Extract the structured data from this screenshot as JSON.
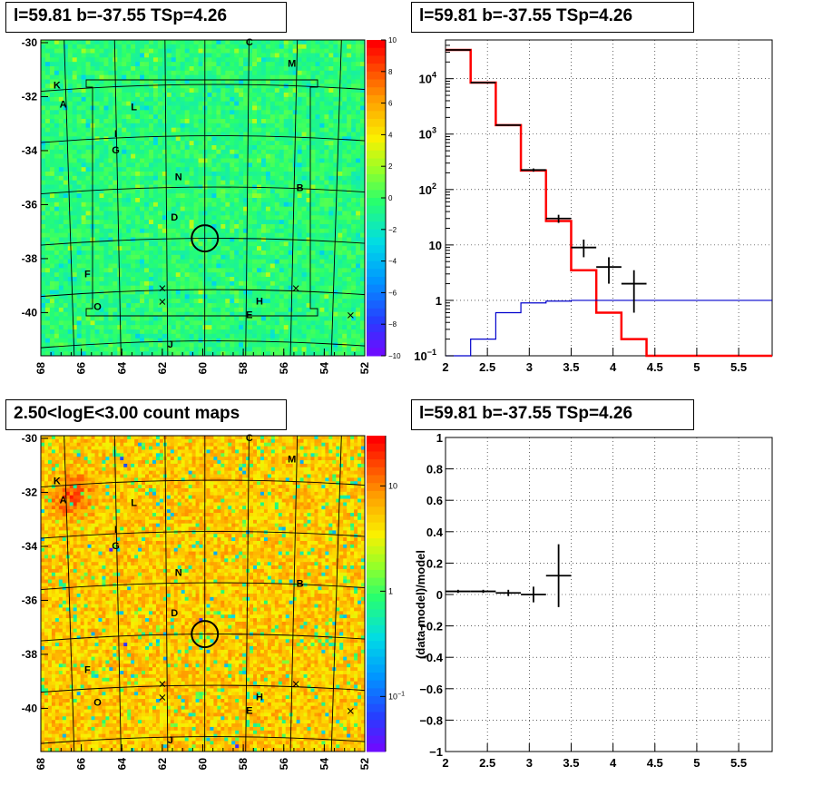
{
  "titles": {
    "top_left": "l=59.81 b=-37.55 TSp=4.26",
    "top_right": "l=59.81 b=-37.55 TSp=4.26",
    "bottom_left": "2.50<logE<3.00 count maps",
    "bottom_right": "l=59.81 b=-37.55 TSp=4.26"
  },
  "chart_data": [
    {
      "type": "heatmap",
      "title": "l=59.81 b=-37.55 TSp=4.26",
      "x_ticks": [
        "68",
        "66",
        "64",
        "62",
        "60",
        "58",
        "56",
        "54",
        "52"
      ],
      "y_ticks": [
        "-30",
        "-32",
        "-34",
        "-36",
        "-38",
        "-40"
      ],
      "xlim": [
        68,
        52
      ],
      "ylim": [
        -41.6,
        -29.9
      ],
      "colorbar": {
        "scale": "linear",
        "range": [
          -10,
          10
        ],
        "ticks": [
          "10",
          "8",
          "6",
          "4",
          "2",
          "0",
          "−2",
          "−4",
          "−6",
          "−8",
          "−10"
        ]
      },
      "labels": [
        {
          "text": "C",
          "l": 57.7,
          "b": -30.0
        },
        {
          "text": "M",
          "l": 55.6,
          "b": -30.8
        },
        {
          "text": "K",
          "l": 67.2,
          "b": -31.6
        },
        {
          "text": "A",
          "l": 66.9,
          "b": -32.3
        },
        {
          "text": "L",
          "l": 63.4,
          "b": -32.4
        },
        {
          "text": "I",
          "l": 64.3,
          "b": -33.4
        },
        {
          "text": "G",
          "l": 64.3,
          "b": -34.0
        },
        {
          "text": "N",
          "l": 61.2,
          "b": -35.0
        },
        {
          "text": "B",
          "l": 55.2,
          "b": -35.4
        },
        {
          "text": "D",
          "l": 61.4,
          "b": -36.5
        },
        {
          "text": "F",
          "l": 65.7,
          "b": -38.6
        },
        {
          "text": "O",
          "l": 65.2,
          "b": -39.8
        },
        {
          "text": "H",
          "l": 57.2,
          "b": -39.6
        },
        {
          "text": "E",
          "l": 57.7,
          "b": -40.1
        },
        {
          "text": "J",
          "l": 61.6,
          "b": -41.2
        }
      ],
      "crosses": [
        {
          "l": 62.0,
          "b": -39.1
        },
        {
          "l": 62.0,
          "b": -39.6
        },
        {
          "l": 55.4,
          "b": -39.1
        },
        {
          "l": 52.7,
          "b": -40.1
        }
      ],
      "circle": {
        "l": 59.9,
        "b": -37.25,
        "radius_deg": 0.55
      }
    },
    {
      "type": "line",
      "title": "l=59.81 b=-37.55 TSp=4.26",
      "xlim": [
        2.0,
        5.9
      ],
      "ylim": [
        0.1,
        50000
      ],
      "y_scale": "log",
      "grid": true,
      "x_ticks": [
        "2",
        "2.5",
        "3",
        "3.5",
        "4",
        "4.5",
        "5",
        "5.5"
      ],
      "y_ticks": [
        {
          "label": "10",
          "sup": "4",
          "value": 10000
        },
        {
          "label": "10",
          "sup": "3",
          "value": 1000
        },
        {
          "label": "10",
          "sup": "2",
          "value": 100
        },
        {
          "label": "10",
          "sup": "",
          "value": 10
        },
        {
          "label": "1",
          "sup": "",
          "value": 1
        },
        {
          "label": "10",
          "sup": "−1",
          "value": 0.1
        }
      ],
      "bin_edges": [
        2.0,
        2.3,
        2.6,
        2.9,
        3.2,
        3.5,
        3.8,
        4.1,
        4.4,
        4.7,
        5.0,
        5.3,
        5.6,
        5.9
      ],
      "series": [
        {
          "color": "#ff0000",
          "values": [
            33000,
            8500,
            1450,
            220,
            27,
            3.5,
            0.6,
            0.2,
            0.1,
            0.1,
            0.1,
            0.1,
            0.1
          ]
        },
        {
          "color": "#0000cc",
          "values": [
            0.05,
            0.2,
            0.6,
            0.9,
            0.97,
            1.0,
            1.0,
            1.0,
            1.0,
            1.0,
            1.0,
            1.0,
            1.0
          ]
        }
      ],
      "points": [
        {
          "x": 2.15,
          "y": 33000,
          "xerr": 0.15,
          "ylo": 32800,
          "yhi": 33200
        },
        {
          "x": 2.45,
          "y": 8500,
          "xerr": 0.15,
          "ylo": 8400,
          "yhi": 8600
        },
        {
          "x": 2.75,
          "y": 1450,
          "xerr": 0.15,
          "ylo": 1410,
          "yhi": 1490
        },
        {
          "x": 3.05,
          "y": 225,
          "xerr": 0.15,
          "ylo": 210,
          "yhi": 240
        },
        {
          "x": 3.35,
          "y": 30,
          "xerr": 0.15,
          "ylo": 25,
          "yhi": 35
        },
        {
          "x": 3.65,
          "y": 9,
          "xerr": 0.15,
          "ylo": 6,
          "yhi": 12.5
        },
        {
          "x": 3.95,
          "y": 4,
          "xerr": 0.15,
          "ylo": 2,
          "yhi": 6
        },
        {
          "x": 4.25,
          "y": 2,
          "xerr": 0.15,
          "ylo": 0.6,
          "yhi": 3.5
        }
      ]
    },
    {
      "type": "heatmap",
      "title": "2.50<logE<3.00 count maps",
      "x_ticks": [
        "68",
        "66",
        "64",
        "62",
        "60",
        "58",
        "56",
        "54",
        "52"
      ],
      "y_ticks": [
        "-30",
        "-32",
        "-34",
        "-36",
        "-38",
        "-40"
      ],
      "xlim": [
        68,
        52
      ],
      "ylim": [
        -41.6,
        -29.9
      ],
      "colorbar": {
        "scale": "log",
        "range": [
          0.03,
          30
        ],
        "ticks": [
          {
            "label": "10",
            "value": 10
          },
          {
            "label": "1",
            "value": 1
          },
          {
            "label": "10",
            "sup": "−1",
            "value": 0.1
          }
        ]
      },
      "labels": [
        {
          "text": "C",
          "l": 57.7,
          "b": -30.0
        },
        {
          "text": "M",
          "l": 55.6,
          "b": -30.8
        },
        {
          "text": "K",
          "l": 67.2,
          "b": -31.6
        },
        {
          "text": "A",
          "l": 66.9,
          "b": -32.3
        },
        {
          "text": "L",
          "l": 63.4,
          "b": -32.4
        },
        {
          "text": "I",
          "l": 64.3,
          "b": -33.4
        },
        {
          "text": "G",
          "l": 64.3,
          "b": -34.0
        },
        {
          "text": "N",
          "l": 61.2,
          "b": -35.0
        },
        {
          "text": "B",
          "l": 55.2,
          "b": -35.4
        },
        {
          "text": "D",
          "l": 61.4,
          "b": -36.5
        },
        {
          "text": "F",
          "l": 65.7,
          "b": -38.6
        },
        {
          "text": "O",
          "l": 65.2,
          "b": -39.8
        },
        {
          "text": "H",
          "l": 57.2,
          "b": -39.6
        },
        {
          "text": "E",
          "l": 57.7,
          "b": -40.1
        },
        {
          "text": "J",
          "l": 61.6,
          "b": -41.2
        }
      ],
      "crosses": [
        {
          "l": 62.0,
          "b": -39.1
        },
        {
          "l": 62.0,
          "b": -39.6
        },
        {
          "l": 55.4,
          "b": -39.1
        },
        {
          "l": 52.7,
          "b": -40.1
        }
      ],
      "circle": {
        "l": 59.9,
        "b": -37.25,
        "radius_deg": 0.55
      }
    },
    {
      "type": "scatter",
      "title": "l=59.81 b=-37.55 TSp=4.26",
      "ylabel": "(data-model)/model",
      "xlim": [
        2.0,
        5.9
      ],
      "ylim": [
        -1.0,
        1.0
      ],
      "grid": true,
      "x_ticks": [
        "2",
        "2.5",
        "3",
        "3.5",
        "4",
        "4.5",
        "5",
        "5.5"
      ],
      "y_ticks": [
        "1",
        "0.8",
        "0.6",
        "0.4",
        "0.2",
        "0",
        "−0.2",
        "−0.4",
        "−0.6",
        "−0.8",
        "−1"
      ],
      "points": [
        {
          "x": 2.15,
          "y": 0.02,
          "xerr": 0.15,
          "yerr": 0.01
        },
        {
          "x": 2.45,
          "y": 0.02,
          "xerr": 0.15,
          "yerr": 0.01
        },
        {
          "x": 2.75,
          "y": 0.01,
          "xerr": 0.15,
          "yerr": 0.02
        },
        {
          "x": 3.05,
          "y": 0.0,
          "xerr": 0.15,
          "yerr": 0.05
        },
        {
          "x": 3.35,
          "y": 0.12,
          "xerr": 0.15,
          "yerr": 0.2
        }
      ]
    }
  ]
}
